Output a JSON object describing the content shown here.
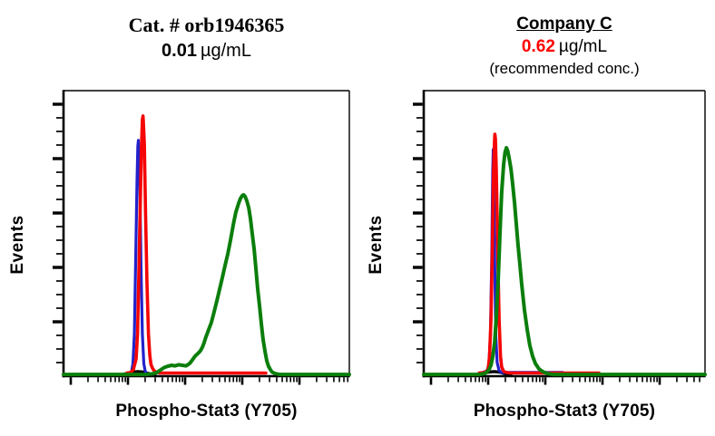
{
  "page": {
    "background": "#FFFFFF"
  },
  "panels": [
    {
      "title": "Cat. # orb1946365",
      "title_underline": false,
      "conc_value": "0.01",
      "conc_unit": "µg/mL",
      "conc_color": "#000000",
      "note": "",
      "ylabel": "Events",
      "xlabel": "Phospho-Stat3 (Y705)"
    },
    {
      "title": "Company C",
      "title_underline": true,
      "conc_value": "0.62",
      "conc_unit": "µg/mL",
      "conc_color": "#FF0000",
      "note": "(recommended conc.)",
      "ylabel": "Events",
      "xlabel": "Phospho-Stat3 (Y705)"
    }
  ],
  "colors": {
    "red": "#F50505",
    "blue": "#2222CC",
    "green": "#0B7E0B",
    "black": "#000000",
    "axis": "#000000"
  },
  "chart_data": [
    {
      "type": "line",
      "title": "Cat. # orb1946365 0.01 µg/mL",
      "xlabel": "Phospho-Stat3 (Y705)",
      "ylabel": "Events",
      "x_scale": "log",
      "x_decades": 5,
      "y_scale": "linear",
      "tick_labels": "none",
      "grid": false,
      "legend": "none",
      "series": [
        {
          "name": "black-curve",
          "color_key": "black",
          "stroke": 3.4,
          "points": [
            [
              0.2,
              0.001
            ],
            [
              0.22,
              0.006
            ],
            [
              0.24,
              0.011
            ],
            [
              0.26,
              0.013
            ],
            [
              0.28,
              0.011
            ],
            [
              0.3,
              0.006
            ],
            [
              0.32,
              0.001
            ]
          ]
        },
        {
          "name": "blue-curve",
          "color_key": "blue",
          "stroke": 3.2,
          "points": [
            [
              0.225,
              0.006
            ],
            [
              0.238,
              0.013
            ],
            [
              0.243,
              0.041
            ],
            [
              0.248,
              0.146
            ],
            [
              0.252,
              0.382
            ],
            [
              0.257,
              0.681
            ],
            [
              0.26,
              0.805
            ],
            [
              0.262,
              0.825
            ],
            [
              0.263,
              0.805
            ],
            [
              0.267,
              0.681
            ],
            [
              0.271,
              0.382
            ],
            [
              0.276,
              0.146
            ],
            [
              0.281,
              0.041
            ],
            [
              0.286,
              0.013
            ],
            [
              0.292,
              0.006
            ]
          ]
        },
        {
          "name": "red-curve",
          "color_key": "red",
          "stroke": 3.6,
          "points": [
            [
              0.222,
              0.008
            ],
            [
              0.235,
              0.01
            ],
            [
              0.244,
              0.019
            ],
            [
              0.254,
              0.057
            ],
            [
              0.259,
              0.146
            ],
            [
              0.263,
              0.322
            ],
            [
              0.268,
              0.573
            ],
            [
              0.273,
              0.812
            ],
            [
              0.276,
              0.898
            ],
            [
              0.278,
              0.911
            ],
            [
              0.279,
              0.898
            ],
            [
              0.283,
              0.812
            ],
            [
              0.287,
              0.573
            ],
            [
              0.292,
              0.322
            ],
            [
              0.297,
              0.146
            ],
            [
              0.302,
              0.07
            ],
            [
              0.306,
              0.038
            ],
            [
              0.311,
              0.025
            ],
            [
              0.317,
              0.016
            ],
            [
              0.324,
              0.011
            ],
            [
              0.337,
              0.008
            ],
            [
              0.708,
              0.008
            ]
          ]
        },
        {
          "name": "green-curve",
          "color_key": "green",
          "stroke": 4.0,
          "points": [
            [
              0,
              0.003
            ],
            [
              0.286,
              0.003
            ],
            [
              0.311,
              0.005
            ],
            [
              0.327,
              0.01
            ],
            [
              0.34,
              0.019
            ],
            [
              0.352,
              0.027
            ],
            [
              0.365,
              0.032
            ],
            [
              0.378,
              0.035
            ],
            [
              0.39,
              0.033
            ],
            [
              0.403,
              0.037
            ],
            [
              0.416,
              0.035
            ],
            [
              0.429,
              0.033
            ],
            [
              0.441,
              0.041
            ],
            [
              0.451,
              0.054
            ],
            [
              0.46,
              0.067
            ],
            [
              0.47,
              0.076
            ],
            [
              0.479,
              0.086
            ],
            [
              0.486,
              0.099
            ],
            [
              0.492,
              0.115
            ],
            [
              0.498,
              0.134
            ],
            [
              0.505,
              0.153
            ],
            [
              0.511,
              0.169
            ],
            [
              0.517,
              0.185
            ],
            [
              0.527,
              0.223
            ],
            [
              0.537,
              0.264
            ],
            [
              0.546,
              0.302
            ],
            [
              0.556,
              0.344
            ],
            [
              0.565,
              0.385
            ],
            [
              0.575,
              0.427
            ],
            [
              0.584,
              0.474
            ],
            [
              0.594,
              0.529
            ],
            [
              0.603,
              0.573
            ],
            [
              0.613,
              0.605
            ],
            [
              0.619,
              0.621
            ],
            [
              0.625,
              0.631
            ],
            [
              0.63,
              0.634
            ],
            [
              0.635,
              0.629
            ],
            [
              0.641,
              0.614
            ],
            [
              0.648,
              0.589
            ],
            [
              0.654,
              0.551
            ],
            [
              0.66,
              0.5
            ],
            [
              0.667,
              0.443
            ],
            [
              0.673,
              0.376
            ],
            [
              0.679,
              0.306
            ],
            [
              0.686,
              0.242
            ],
            [
              0.692,
              0.182
            ],
            [
              0.698,
              0.127
            ],
            [
              0.705,
              0.083
            ],
            [
              0.711,
              0.051
            ],
            [
              0.717,
              0.032
            ],
            [
              0.724,
              0.019
            ],
            [
              0.73,
              0.011
            ],
            [
              0.74,
              0.006
            ],
            [
              0.756,
              0.003
            ],
            [
              1,
              0.003
            ]
          ]
        }
      ]
    },
    {
      "type": "line",
      "title": "Company C 0.62 µg/mL (recommended conc.)",
      "xlabel": "Phospho-Stat3 (Y705)",
      "ylabel": "Events",
      "x_scale": "log",
      "x_decades": 5,
      "y_scale": "linear",
      "tick_labels": "none",
      "grid": false,
      "legend": "none",
      "series": [
        {
          "name": "black-curve",
          "color_key": "black",
          "stroke": 3.4,
          "points": [
            [
              0.19,
              0.001
            ],
            [
              0.21,
              0.006
            ],
            [
              0.23,
              0.011
            ],
            [
              0.25,
              0.013
            ],
            [
              0.27,
              0.011
            ],
            [
              0.29,
              0.005
            ],
            [
              0.31,
              0.001
            ]
          ]
        },
        {
          "name": "blue-curve",
          "color_key": "blue",
          "stroke": 3.2,
          "points": [
            [
              0.21,
              0.01
            ],
            [
              0.226,
              0.016
            ],
            [
              0.232,
              0.045
            ],
            [
              0.237,
              0.14
            ],
            [
              0.242,
              0.427
            ],
            [
              0.245,
              0.713
            ],
            [
              0.247,
              0.793
            ],
            [
              0.248,
              0.713
            ],
            [
              0.252,
              0.427
            ],
            [
              0.256,
              0.14
            ],
            [
              0.261,
              0.045
            ],
            [
              0.268,
              0.016
            ],
            [
              0.277,
              0.01
            ],
            [
              0.494,
              0.01
            ]
          ]
        },
        {
          "name": "red-curve",
          "color_key": "red",
          "stroke": 3.6,
          "points": [
            [
              0.197,
              0.008
            ],
            [
              0.216,
              0.01
            ],
            [
              0.223,
              0.014
            ],
            [
              0.229,
              0.022
            ],
            [
              0.234,
              0.067
            ],
            [
              0.239,
              0.194
            ],
            [
              0.244,
              0.439
            ],
            [
              0.248,
              0.72
            ],
            [
              0.252,
              0.831
            ],
            [
              0.253,
              0.847
            ],
            [
              0.255,
              0.831
            ],
            [
              0.258,
              0.72
            ],
            [
              0.263,
              0.439
            ],
            [
              0.268,
              0.194
            ],
            [
              0.273,
              0.067
            ],
            [
              0.277,
              0.029
            ],
            [
              0.284,
              0.014
            ],
            [
              0.294,
              0.01
            ],
            [
              0.306,
              0.008
            ],
            [
              0.623,
              0.008
            ]
          ]
        },
        {
          "name": "green-curve",
          "color_key": "green",
          "stroke": 4.0,
          "points": [
            [
              0,
              0.003
            ],
            [
              0.197,
              0.003
            ],
            [
              0.213,
              0.005
            ],
            [
              0.223,
              0.01
            ],
            [
              0.232,
              0.019
            ],
            [
              0.239,
              0.035
            ],
            [
              0.245,
              0.064
            ],
            [
              0.252,
              0.115
            ],
            [
              0.258,
              0.204
            ],
            [
              0.265,
              0.338
            ],
            [
              0.271,
              0.497
            ],
            [
              0.277,
              0.643
            ],
            [
              0.284,
              0.739
            ],
            [
              0.289,
              0.783
            ],
            [
              0.294,
              0.799
            ],
            [
              0.298,
              0.79
            ],
            [
              0.303,
              0.767
            ],
            [
              0.31,
              0.726
            ],
            [
              0.316,
              0.672
            ],
            [
              0.323,
              0.605
            ],
            [
              0.329,
              0.532
            ],
            [
              0.335,
              0.459
            ],
            [
              0.342,
              0.389
            ],
            [
              0.348,
              0.322
            ],
            [
              0.358,
              0.229
            ],
            [
              0.368,
              0.159
            ],
            [
              0.377,
              0.105
            ],
            [
              0.387,
              0.067
            ],
            [
              0.397,
              0.041
            ],
            [
              0.41,
              0.022
            ],
            [
              0.423,
              0.013
            ],
            [
              0.439,
              0.006
            ],
            [
              0.461,
              0.003
            ],
            [
              1,
              0.003
            ]
          ]
        }
      ]
    }
  ]
}
